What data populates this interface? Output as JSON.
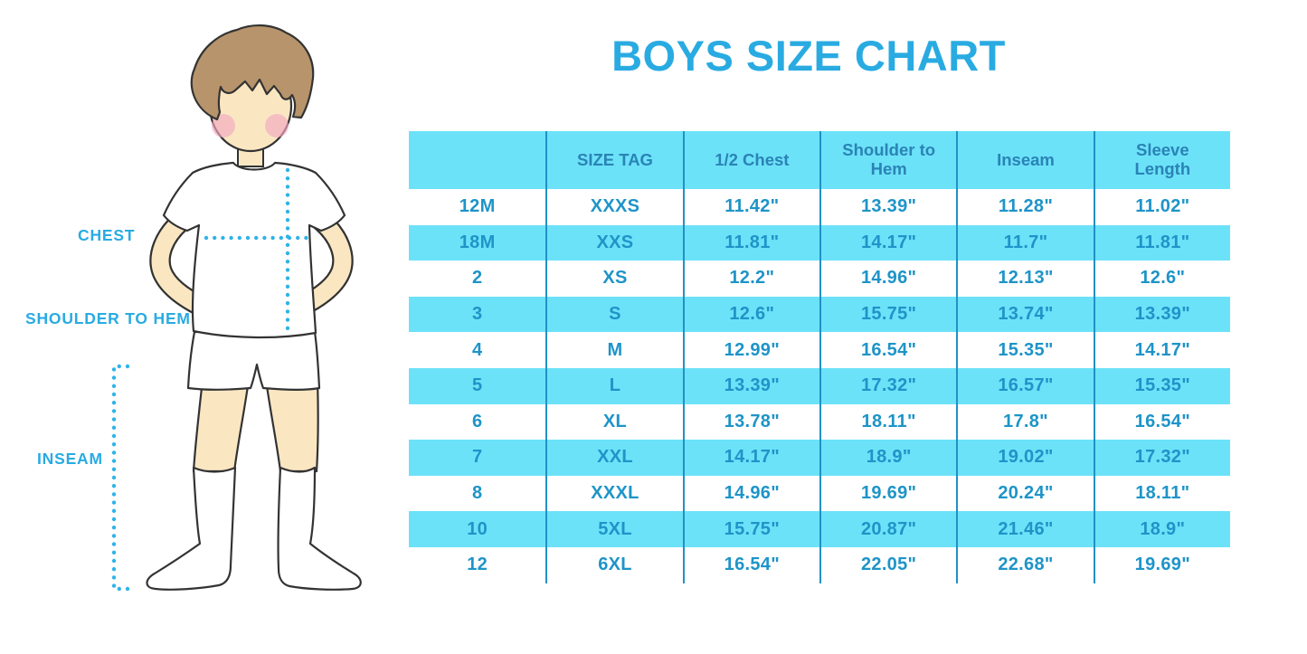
{
  "title": "BOYS SIZE CHART",
  "figure": {
    "description": "cartoon boy wearing white t-shirt, white shorts and knee-high socks, hands on hips, with dotted measurement guides",
    "labels": {
      "chest": "CHEST",
      "shoulder_to_hem": "SHOULDER TO HEM",
      "inseam": "INSEAM"
    }
  },
  "colors": {
    "accent_blue": "#29ABE2",
    "stripe_cyan": "#6CE2F9",
    "cell_text": "#1E94C8",
    "header_text": "#2A83B5",
    "divider": "#2191C4",
    "skin": "#FAE7C2",
    "hair": "#B7946B",
    "dotted_line": "#2FB3E8"
  },
  "chart_data": {
    "type": "table",
    "title": "BOYS SIZE CHART",
    "columns": [
      "",
      "SIZE TAG",
      "1/2 Chest",
      "Shoulder to Hem",
      "Inseam",
      "Sleeve Length"
    ],
    "rows": [
      [
        "12M",
        "XXXS",
        "11.42\"",
        "13.39\"",
        "11.28\"",
        "11.02\""
      ],
      [
        "18M",
        "XXS",
        "11.81\"",
        "14.17\"",
        "11.7\"",
        "11.81\""
      ],
      [
        "2",
        "XS",
        "12.2\"",
        "14.96\"",
        "12.13\"",
        "12.6\""
      ],
      [
        "3",
        "S",
        "12.6\"",
        "15.75\"",
        "13.74\"",
        "13.39\""
      ],
      [
        "4",
        "M",
        "12.99\"",
        "16.54\"",
        "15.35\"",
        "14.17\""
      ],
      [
        "5",
        "L",
        "13.39\"",
        "17.32\"",
        "16.57\"",
        "15.35\""
      ],
      [
        "6",
        "XL",
        "13.78\"",
        "18.11\"",
        "17.8\"",
        "16.54\""
      ],
      [
        "7",
        "XXL",
        "14.17\"",
        "18.9\"",
        "19.02\"",
        "17.32\""
      ],
      [
        "8",
        "XXXL",
        "14.96\"",
        "19.69\"",
        "20.24\"",
        "18.11\""
      ],
      [
        "10",
        "5XL",
        "15.75\"",
        "20.87\"",
        "21.46\"",
        "18.9\""
      ],
      [
        "12",
        "6XL",
        "16.54\"",
        "22.05\"",
        "22.68\"",
        "19.69\""
      ]
    ],
    "units": "inches",
    "stripe_pattern": "rows alternate white / cyan starting with white"
  }
}
